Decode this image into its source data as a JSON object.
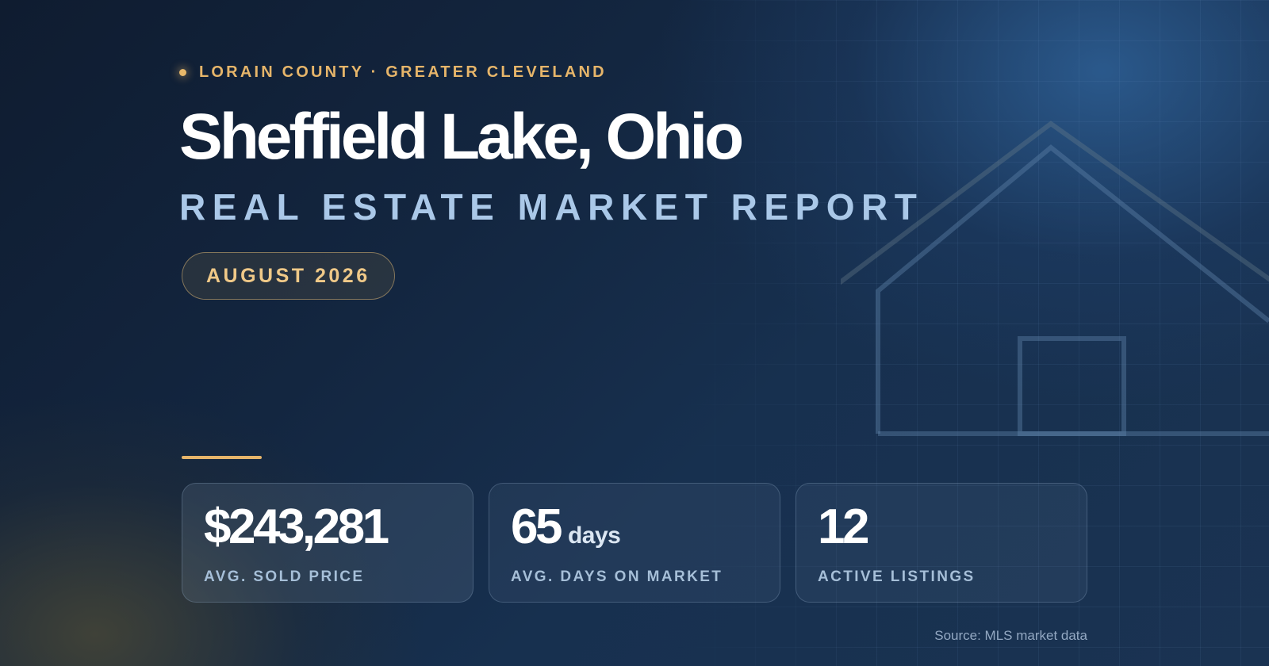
{
  "header": {
    "region": "LORAIN COUNTY · GREATER CLEVELAND",
    "title": "Sheffield Lake, Ohio",
    "subtitle": "REAL ESTATE MARKET REPORT",
    "period": "AUGUST 2026"
  },
  "stats": [
    {
      "value": "$243,281",
      "unit": "",
      "label": "AVG. SOLD PRICE"
    },
    {
      "value": "65",
      "unit": "days",
      "label": "AVG. DAYS ON MARKET"
    },
    {
      "value": "12",
      "unit": "",
      "label": "ACTIVE LISTINGS"
    }
  ],
  "footer": {
    "source": "Source: MLS market data"
  },
  "colors": {
    "accent": "#e6b56a",
    "title": "#ffffff",
    "subtitle": "#aac8e8",
    "background": "#132640"
  },
  "icons": {
    "region_marker": "dot-icon",
    "background_illustration": "house-outline-icon"
  }
}
